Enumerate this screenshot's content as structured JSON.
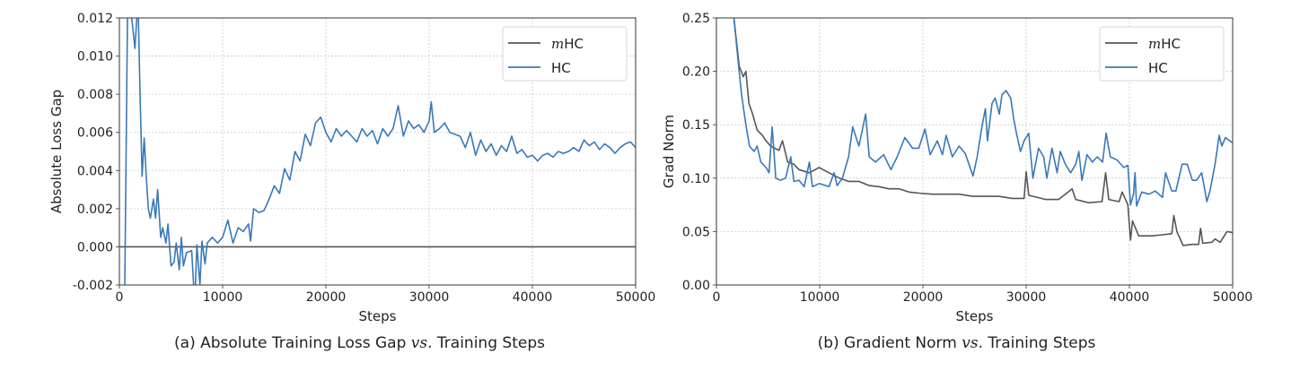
{
  "chart_data": [
    {
      "type": "line",
      "caption_prefix": "(a) Absolute Training Loss Gap ",
      "caption_vs": "vs.",
      "caption_suffix": " Training Steps",
      "xlabel": "Steps",
      "ylabel": "Absolute Loss Gap",
      "xlim": [
        0,
        50000
      ],
      "ylim": [
        -0.002,
        0.012
      ],
      "xticks": [
        0,
        10000,
        20000,
        30000,
        40000,
        50000
      ],
      "yticks": [
        -0.002,
        0.0,
        0.002,
        0.004,
        0.006,
        0.008,
        0.01,
        0.012
      ],
      "ytick_labels": [
        "-0.002",
        "0.000",
        "0.002",
        "0.004",
        "0.006",
        "0.008",
        "0.010",
        "0.012"
      ],
      "grid": true,
      "legend_position": "top-right",
      "series": [
        {
          "name_math": "m",
          "name": "HC",
          "color": "#555555",
          "x": [
            0,
            50000
          ],
          "y": [
            0,
            0
          ]
        },
        {
          "name": "HC",
          "color": "#3a78b8",
          "x": [
            0,
            500,
            800,
            1000,
            1500,
            1800,
            2000,
            2200,
            2400,
            2600,
            2800,
            3000,
            3300,
            3500,
            3700,
            4000,
            4200,
            4500,
            4700,
            5000,
            5300,
            5500,
            5800,
            6000,
            6200,
            6500,
            7000,
            7300,
            7500,
            7800,
            8000,
            8300,
            8500,
            9000,
            9500,
            10000,
            10500,
            11000,
            11500,
            12000,
            12500,
            12700,
            13000,
            13500,
            14000,
            14500,
            15000,
            15500,
            16000,
            16500,
            17000,
            17500,
            18000,
            18500,
            19000,
            19500,
            20000,
            20500,
            21000,
            21500,
            22000,
            22500,
            23000,
            23500,
            24000,
            24500,
            25000,
            25500,
            26000,
            26500,
            27000,
            27500,
            28000,
            28500,
            29000,
            29500,
            30000,
            30200,
            30500,
            31000,
            31500,
            32000,
            33000,
            33500,
            34000,
            34500,
            35000,
            35500,
            36000,
            36500,
            37000,
            37500,
            38000,
            38500,
            39000,
            39500,
            40000,
            40500,
            41000,
            41500,
            42000,
            42500,
            43000,
            43500,
            44000,
            44500,
            45000,
            45500,
            46000,
            46500,
            47000,
            47500,
            48000,
            48500,
            49000,
            49500,
            50000
          ],
          "y": [
            -0.003,
            -0.003,
            0.013,
            0.013,
            0.0104,
            0.013,
            0.008,
            0.0037,
            0.0057,
            0.0037,
            0.002,
            0.0015,
            0.0025,
            0.0015,
            0.003,
            0.0005,
            0.001,
            0.0002,
            0.0012,
            -0.001,
            -0.0008,
            0.0002,
            -0.0012,
            0.0005,
            -0.001,
            -0.0003,
            -0.0002,
            -0.003,
            0.0001,
            -0.002,
            0.0003,
            -0.0009,
            0.0002,
            0.0005,
            0.0002,
            0.0005,
            0.0014,
            0.0002,
            0.001,
            0.0008,
            0.0012,
            0.0003,
            0.002,
            0.0018,
            0.0019,
            0.0025,
            0.0032,
            0.0028,
            0.0041,
            0.0035,
            0.005,
            0.0045,
            0.0059,
            0.0053,
            0.0065,
            0.0068,
            0.006,
            0.0055,
            0.0062,
            0.0058,
            0.0061,
            0.0058,
            0.0055,
            0.0062,
            0.0058,
            0.0061,
            0.0054,
            0.0062,
            0.0058,
            0.0062,
            0.0074,
            0.0058,
            0.0066,
            0.0062,
            0.0064,
            0.006,
            0.0066,
            0.0076,
            0.006,
            0.0062,
            0.0065,
            0.006,
            0.0058,
            0.0052,
            0.006,
            0.0048,
            0.0056,
            0.005,
            0.0054,
            0.0048,
            0.0053,
            0.005,
            0.0058,
            0.0049,
            0.0051,
            0.0047,
            0.0048,
            0.0045,
            0.0048,
            0.0049,
            0.0047,
            0.005,
            0.0049,
            0.005,
            0.0052,
            0.005,
            0.0056,
            0.0053,
            0.0055,
            0.0051,
            0.0054,
            0.0052,
            0.0049,
            0.0052,
            0.0054,
            0.0055,
            0.0052
          ]
        }
      ]
    },
    {
      "type": "line",
      "caption_prefix": "(b) Gradient Norm ",
      "caption_vs": "vs.",
      "caption_suffix": " Training Steps",
      "xlabel": "Steps",
      "ylabel": "Grad Norm",
      "xlim": [
        0,
        50000
      ],
      "ylim": [
        0,
        0.25
      ],
      "xticks": [
        0,
        10000,
        20000,
        30000,
        40000,
        50000
      ],
      "yticks": [
        0,
        0.05,
        0.1,
        0.15,
        0.2,
        0.25
      ],
      "ytick_labels": [
        "0.00",
        "0.05",
        "0.10",
        "0.15",
        "0.20",
        "0.25"
      ],
      "grid": true,
      "legend_position": "top-right",
      "series": [
        {
          "name_math": "m",
          "name": "HC",
          "color": "#555555",
          "x": [
            1700,
            2200,
            2600,
            2850,
            3150,
            3500,
            3950,
            4450,
            4800,
            5250,
            6050,
            6400,
            6900,
            7500,
            8000,
            9000,
            9950,
            10900,
            11900,
            12800,
            13800,
            14800,
            15750,
            16700,
            17700,
            18650,
            19600,
            20900,
            22200,
            23500,
            24800,
            26050,
            27350,
            28650,
            29800,
            30000,
            30250,
            31900,
            33150,
            34450,
            34800,
            36050,
            37350,
            37700,
            38000,
            39000,
            39300,
            39850,
            40100,
            40300,
            40900,
            42200,
            43200,
            44100,
            44300,
            44600,
            45200,
            46100,
            46700,
            46900,
            47100,
            48000,
            48300,
            48800,
            49450,
            50000
          ],
          "y": [
            0.25,
            0.205,
            0.195,
            0.2,
            0.17,
            0.16,
            0.145,
            0.14,
            0.135,
            0.13,
            0.126,
            0.135,
            0.115,
            0.113,
            0.108,
            0.105,
            0.11,
            0.105,
            0.1,
            0.097,
            0.097,
            0.093,
            0.092,
            0.09,
            0.09,
            0.087,
            0.086,
            0.085,
            0.085,
            0.085,
            0.083,
            0.083,
            0.083,
            0.081,
            0.081,
            0.106,
            0.084,
            0.08,
            0.08,
            0.09,
            0.08,
            0.077,
            0.078,
            0.105,
            0.08,
            0.078,
            0.087,
            0.075,
            0.042,
            0.06,
            0.046,
            0.046,
            0.047,
            0.048,
            0.065,
            0.05,
            0.037,
            0.038,
            0.038,
            0.053,
            0.039,
            0.04,
            0.043,
            0.04,
            0.05,
            0.049
          ]
        },
        {
          "name": "HC",
          "color": "#3a78b8",
          "x": [
            1700,
            2200,
            2450,
            2850,
            3200,
            3650,
            3950,
            4300,
            4800,
            5100,
            5400,
            5750,
            6200,
            6700,
            7200,
            7500,
            8000,
            8500,
            9000,
            9300,
            9950,
            10900,
            11400,
            11700,
            12200,
            12800,
            13200,
            13800,
            14450,
            14800,
            15400,
            16200,
            16900,
            17500,
            18250,
            19000,
            19600,
            20200,
            20700,
            21400,
            21900,
            22250,
            22850,
            23500,
            24100,
            24850,
            25250,
            25750,
            26050,
            26250,
            26700,
            27000,
            27400,
            27650,
            28050,
            28500,
            28800,
            29100,
            29450,
            29800,
            30250,
            30650,
            31200,
            31700,
            32000,
            32500,
            33000,
            33300,
            33800,
            34300,
            34800,
            35100,
            35400,
            35900,
            36400,
            36900,
            37400,
            37750,
            38150,
            38800,
            39450,
            39850,
            40100,
            40400,
            40550,
            40700,
            41200,
            41900,
            42500,
            43200,
            43500,
            44100,
            44500,
            45100,
            45600,
            46100,
            46500,
            47000,
            47500,
            47800,
            48300,
            48700,
            48950,
            49300,
            50000
          ],
          "y": [
            0.25,
            0.2,
            0.177,
            0.15,
            0.13,
            0.125,
            0.13,
            0.115,
            0.11,
            0.105,
            0.148,
            0.1,
            0.098,
            0.1,
            0.12,
            0.097,
            0.098,
            0.092,
            0.115,
            0.092,
            0.095,
            0.092,
            0.105,
            0.093,
            0.1,
            0.12,
            0.148,
            0.13,
            0.16,
            0.12,
            0.115,
            0.122,
            0.108,
            0.12,
            0.138,
            0.128,
            0.128,
            0.146,
            0.122,
            0.135,
            0.122,
            0.14,
            0.12,
            0.13,
            0.123,
            0.102,
            0.12,
            0.15,
            0.165,
            0.135,
            0.17,
            0.175,
            0.16,
            0.178,
            0.182,
            0.175,
            0.155,
            0.14,
            0.125,
            0.135,
            0.142,
            0.1,
            0.128,
            0.12,
            0.1,
            0.128,
            0.105,
            0.125,
            0.113,
            0.105,
            0.113,
            0.125,
            0.098,
            0.122,
            0.115,
            0.12,
            0.115,
            0.142,
            0.12,
            0.117,
            0.11,
            0.112,
            0.075,
            0.085,
            0.105,
            0.074,
            0.087,
            0.085,
            0.088,
            0.082,
            0.105,
            0.088,
            0.088,
            0.113,
            0.113,
            0.098,
            0.098,
            0.105,
            0.078,
            0.088,
            0.113,
            0.14,
            0.13,
            0.138,
            0.133
          ]
        }
      ]
    }
  ]
}
